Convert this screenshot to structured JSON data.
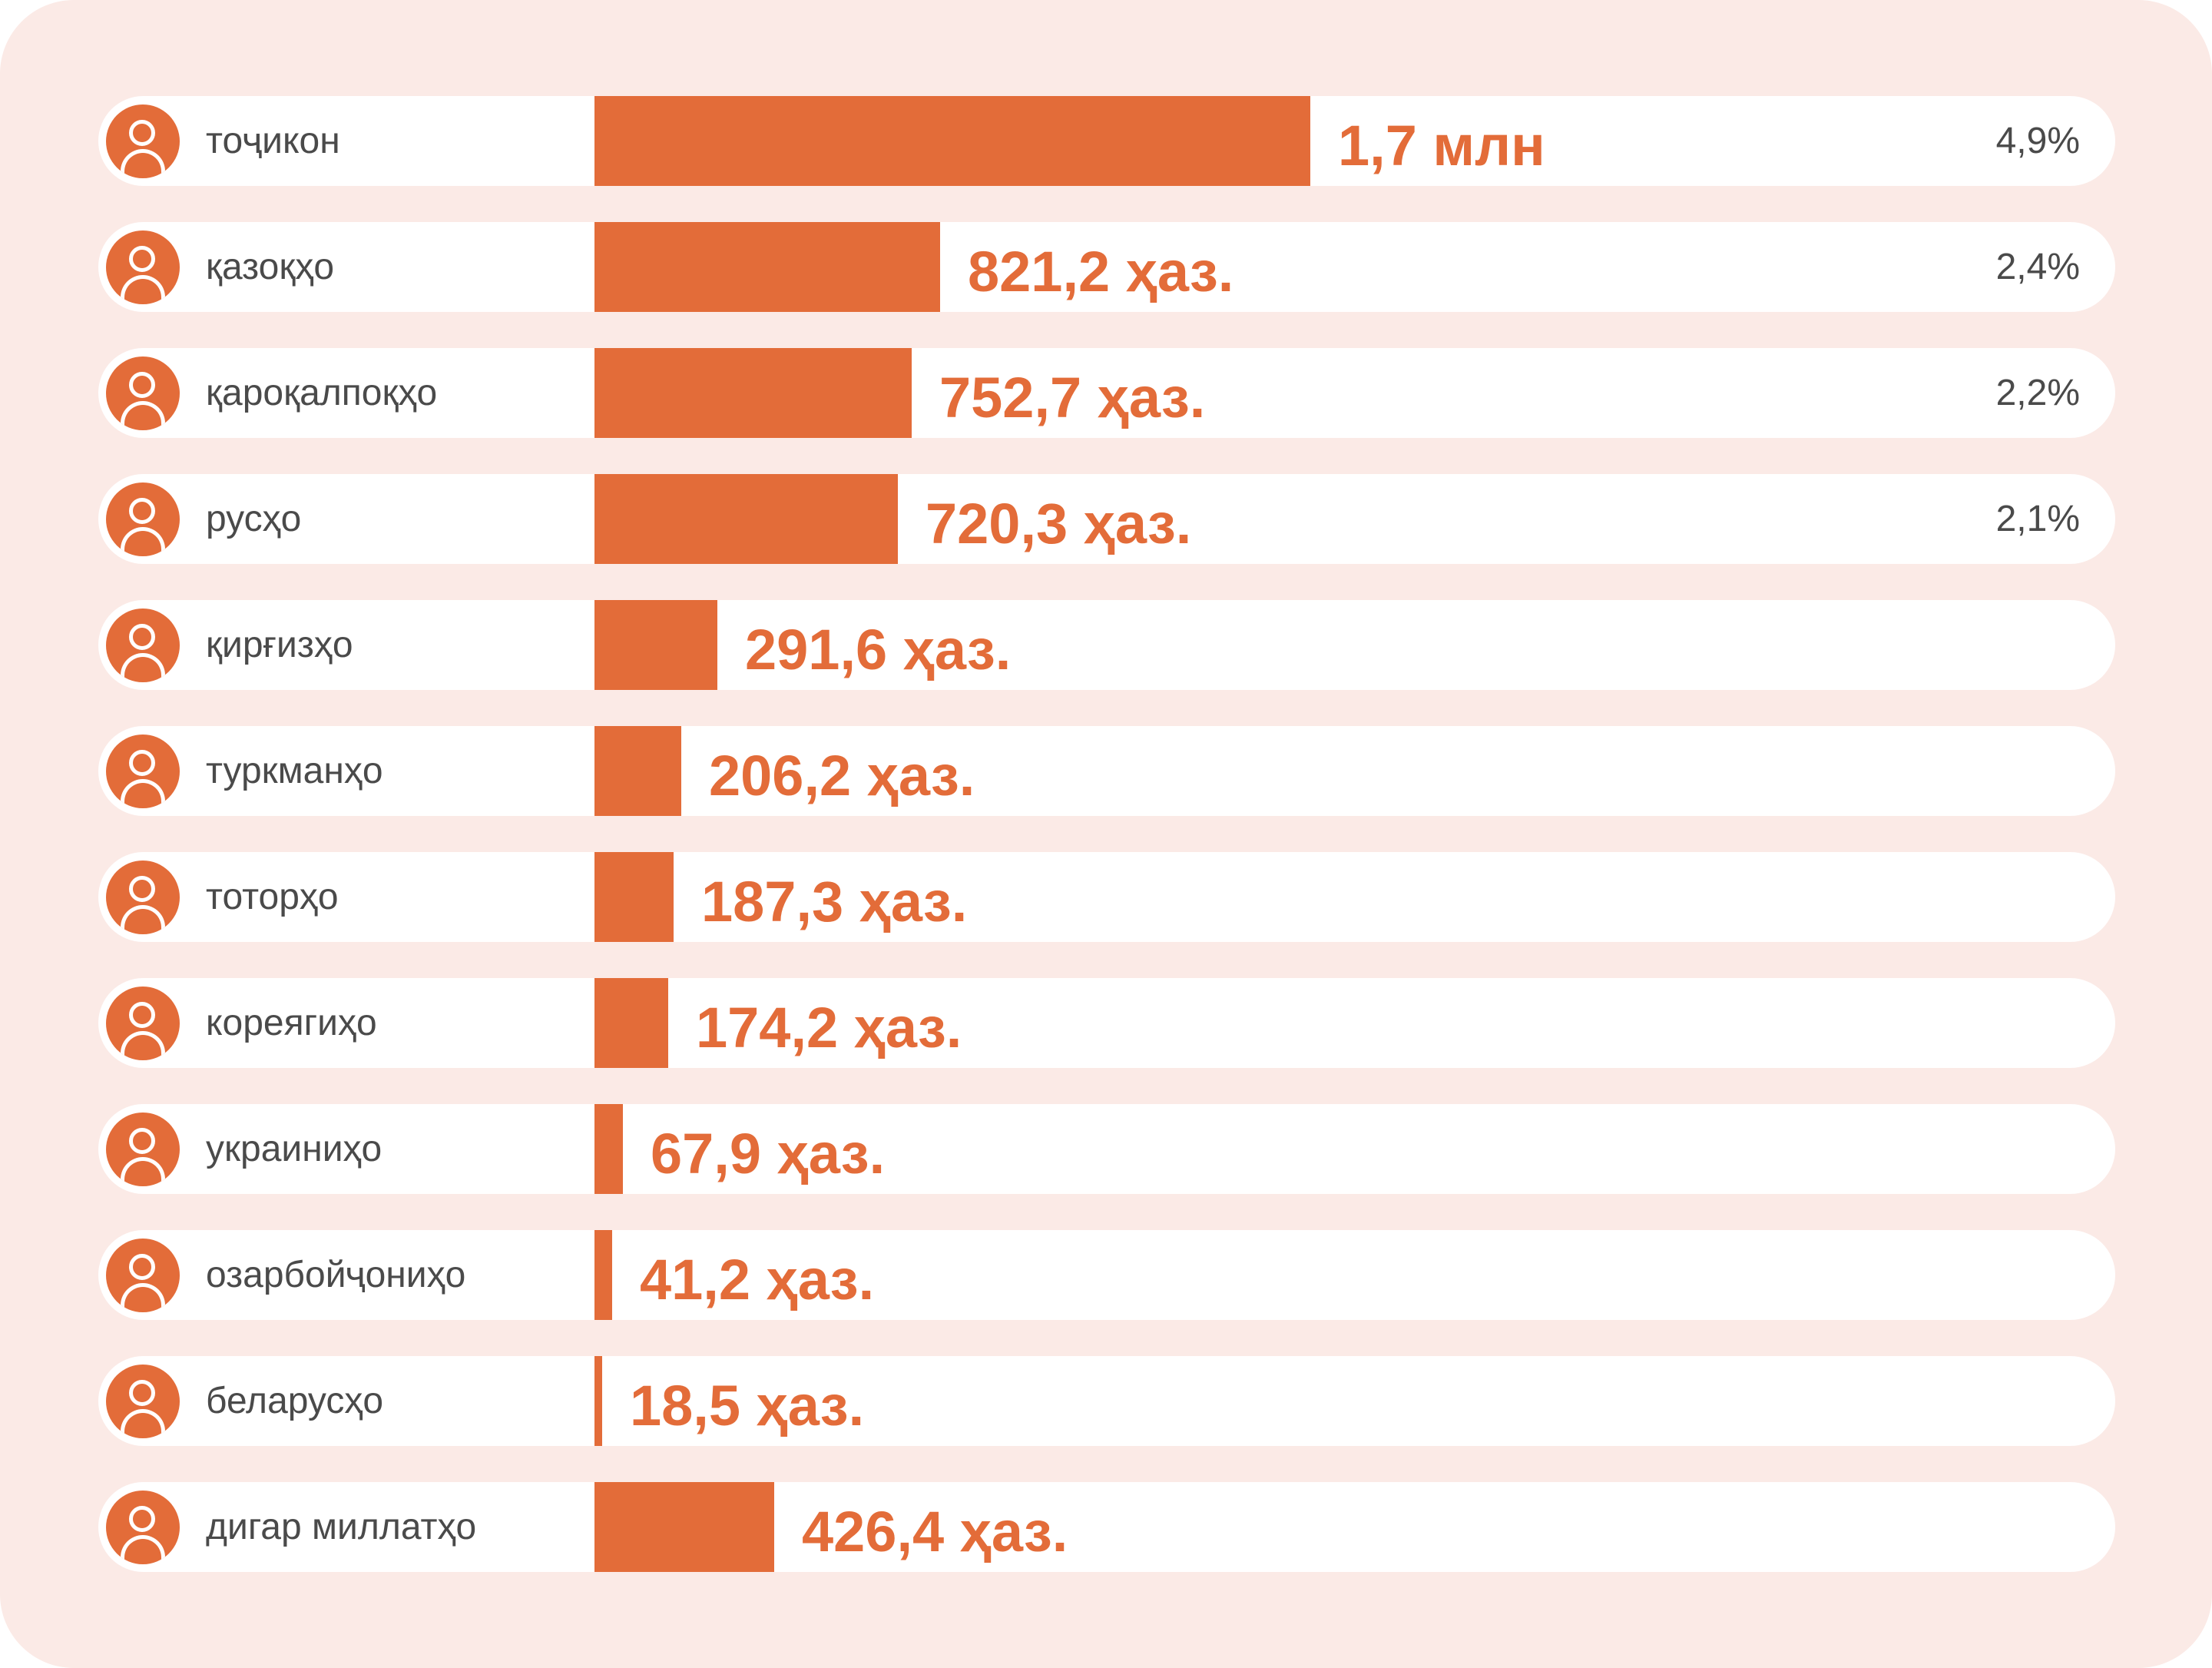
{
  "colors": {
    "accent": "#e36c39",
    "card_background": "#fbeae6",
    "row_background": "#ffffff",
    "label_text": "#4a4a4a"
  },
  "row_icon": "person-icon",
  "chart_data": {
    "type": "bar",
    "orientation": "horizontal",
    "categories": [
      "тоҷикон",
      "қазоқҳо",
      "қароқалпоқҳо",
      "русҳо",
      "қирғизҳо",
      "туркманҳо",
      "тоторҳо",
      "кореягиҳо",
      "украиниҳо",
      "озарбойҷониҳо",
      "беларусҳо",
      "дигар миллатҳо"
    ],
    "values": [
      1700000,
      821200,
      752700,
      720300,
      291600,
      206200,
      187300,
      174200,
      67900,
      41200,
      18500,
      426400
    ],
    "value_labels": [
      "1,7 млн",
      "821,2 ҳаз.",
      "752,7 ҳаз.",
      "720,3 ҳаз.",
      "291,6 ҳаз.",
      "206,2 ҳаз.",
      "187,3 ҳаз.",
      "174,2 ҳаз.",
      "67,9 ҳаз.",
      "41,2 ҳаз.",
      "18,5 ҳаз.",
      "426,4 ҳаз."
    ],
    "shares": [
      "4,9%",
      "2,4%",
      "2,2%",
      "2,1%",
      "",
      "",
      "",
      "",
      "",
      "",
      "",
      ""
    ],
    "xlim": [
      0,
      1700000
    ],
    "grid": false,
    "legend": "none"
  }
}
